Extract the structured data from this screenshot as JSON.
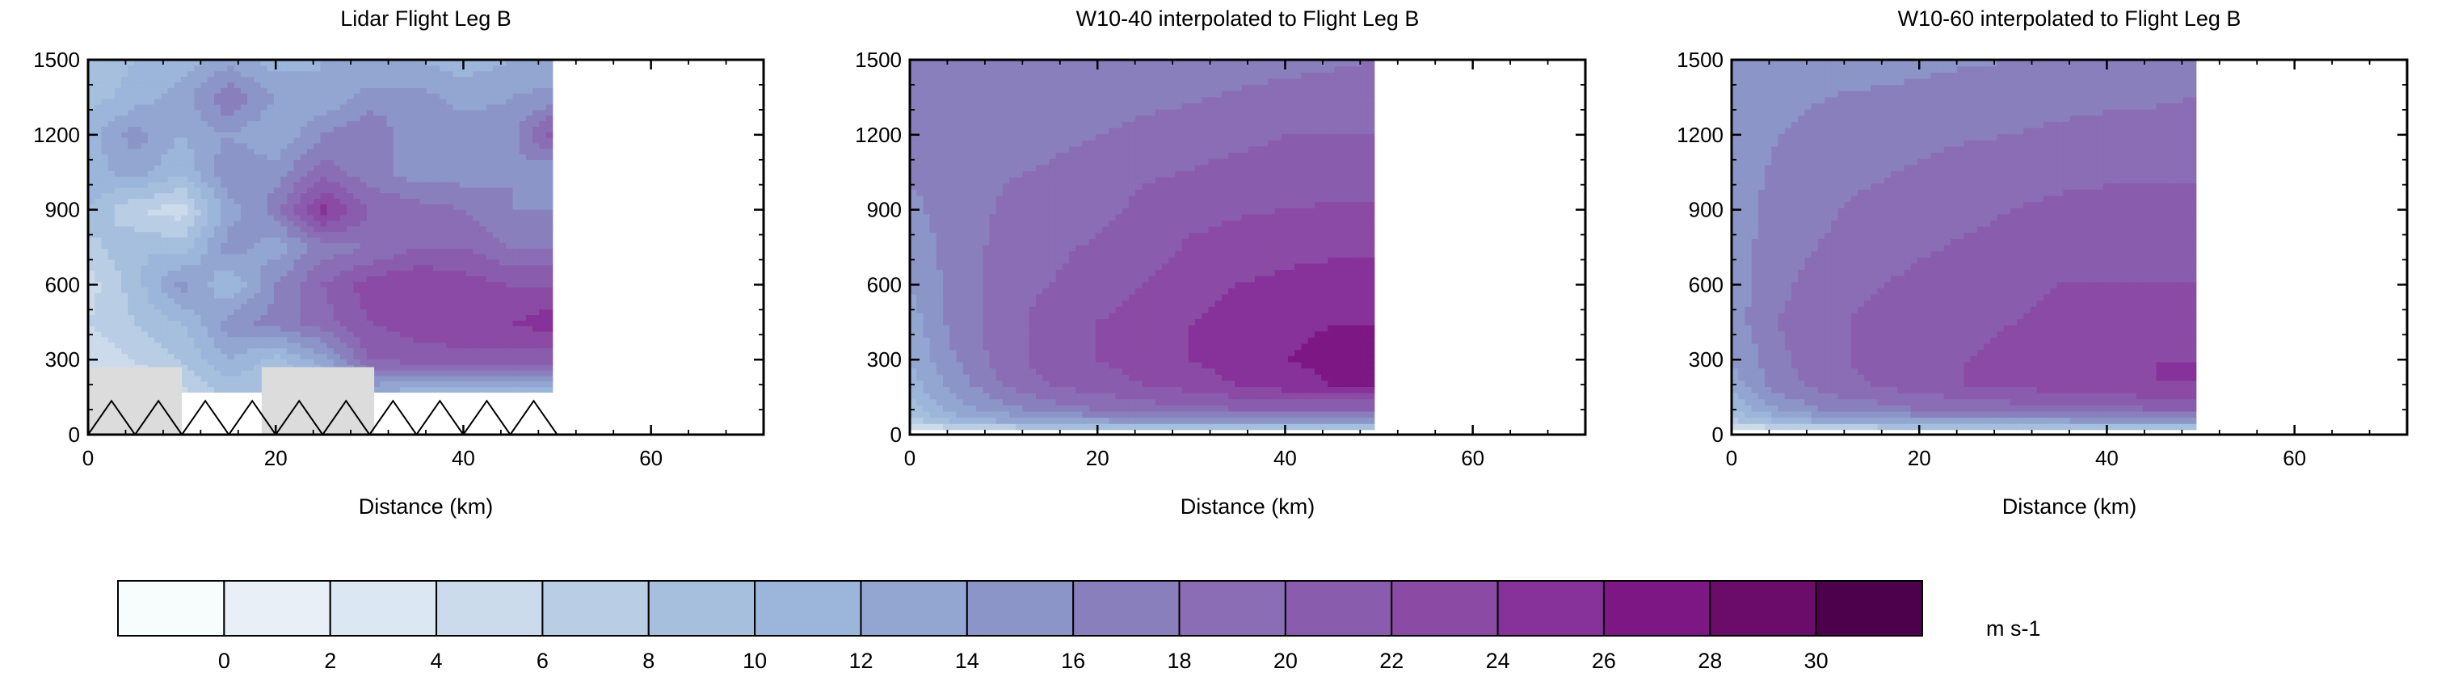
{
  "chart_data": [
    {
      "type": "heatmap",
      "title": "Lidar Flight Leg B",
      "xlabel": "Distance (km)",
      "ylabel": "",
      "xlim": [
        0,
        72
      ],
      "ylim": [
        0,
        1500
      ],
      "x_ticks": [
        0,
        20,
        40,
        60
      ],
      "y_ticks": [
        0,
        300,
        600,
        900,
        1200,
        1500
      ],
      "data_extent_x": [
        0,
        49.5
      ],
      "data_extent_y": [
        170,
        1500
      ],
      "x": [
        0,
        5,
        10,
        15,
        20,
        25,
        30,
        35,
        40,
        45,
        49.5
      ],
      "y": [
        150,
        300,
        450,
        600,
        750,
        900,
        1050,
        1200,
        1350,
        1500
      ],
      "z": [
        [
          4,
          4,
          5,
          8,
          8,
          9,
          11,
          9,
          8,
          8,
          9
        ],
        [
          4,
          6,
          8,
          12,
          9,
          13,
          20,
          21,
          21,
          21,
          21
        ],
        [
          6,
          8,
          10,
          15,
          17,
          19,
          22,
          23,
          24,
          24,
          25
        ],
        [
          5,
          9,
          15,
          10,
          16,
          20,
          23,
          24,
          23,
          22,
          22
        ],
        [
          7,
          10,
          9,
          15,
          13,
          17,
          18,
          20,
          20,
          18,
          18
        ],
        [
          10,
          6,
          5,
          13,
          17,
          25,
          20,
          19,
          18,
          16,
          16
        ],
        [
          11,
          13,
          10,
          16,
          15,
          19,
          17,
          15,
          15,
          16,
          14
        ],
        [
          11,
          15,
          12,
          14,
          12,
          16,
          18,
          14,
          16,
          15,
          21
        ],
        [
          9,
          11,
          13,
          18,
          14,
          12,
          15,
          15,
          13,
          14,
          15
        ],
        [
          8,
          10,
          11,
          13,
          11,
          12,
          12,
          12,
          11,
          12,
          12
        ]
      ],
      "terrain": {
        "boxes": [
          [
            0,
            10,
            0,
            270
          ],
          [
            18.5,
            30.5,
            0,
            270
          ]
        ],
        "triangles": {
          "x_start": 0,
          "x_end": 50,
          "count": 10,
          "height": 135
        }
      }
    },
    {
      "type": "heatmap",
      "title": "W10-40 interpolated to Flight Leg B",
      "xlabel": "Distance (km)",
      "ylabel": "",
      "xlim": [
        0,
        72
      ],
      "ylim": [
        0,
        1500
      ],
      "x_ticks": [
        0,
        20,
        40,
        60
      ],
      "y_ticks": [
        0,
        300,
        600,
        900,
        1200,
        1500
      ],
      "data_extent_x": [
        0,
        49.5
      ],
      "data_extent_y": [
        20,
        1500
      ],
      "x": [
        0,
        5,
        10,
        15,
        20,
        25,
        30,
        35,
        40,
        45,
        49.5
      ],
      "y": [
        20,
        50,
        100,
        200,
        300,
        450,
        600,
        800,
        1000,
        1200,
        1350,
        1500
      ],
      "z": [
        [
          3,
          4,
          5,
          5,
          6,
          6,
          6,
          6,
          6,
          6,
          6
        ],
        [
          7,
          10,
          12,
          13,
          13,
          14,
          14,
          14,
          14,
          14,
          14
        ],
        [
          9,
          13,
          15,
          17,
          18,
          19,
          19,
          20,
          20,
          20,
          20
        ],
        [
          11,
          15,
          18,
          20,
          21,
          22,
          23,
          24,
          25,
          26,
          26
        ],
        [
          12,
          16,
          19,
          21,
          22,
          23,
          24,
          25,
          26,
          26.5,
          27
        ],
        [
          13,
          17,
          19,
          21,
          22,
          23,
          24,
          25,
          25.5,
          26,
          26
        ],
        [
          14,
          17,
          19,
          20,
          21,
          22,
          23,
          24,
          24.5,
          25,
          25
        ],
        [
          15,
          17,
          18.5,
          19.5,
          20,
          21,
          22,
          22.5,
          23,
          23,
          23
        ],
        [
          16,
          17,
          18,
          18.5,
          19,
          20,
          20.5,
          21,
          21,
          21.5,
          21.5
        ],
        [
          16,
          16.8,
          17,
          17.5,
          18,
          18.5,
          19,
          19.5,
          20,
          20,
          20
        ],
        [
          16,
          16.5,
          16.8,
          17,
          17.2,
          17.5,
          17.8,
          18.2,
          18.5,
          18.8,
          19
        ],
        [
          16,
          16.3,
          16.5,
          16.6,
          16.8,
          17,
          17.1,
          17.3,
          17.5,
          17.7,
          18
        ]
      ]
    },
    {
      "type": "heatmap",
      "title": "W10-60 interpolated to Flight Leg B",
      "xlabel": "Distance (km)",
      "ylabel": "",
      "xlim": [
        0,
        72
      ],
      "ylim": [
        0,
        1500
      ],
      "x_ticks": [
        0,
        20,
        40,
        60
      ],
      "y_ticks": [
        0,
        300,
        600,
        900,
        1200,
        1500
      ],
      "data_extent_x": [
        0,
        49.5
      ],
      "data_extent_y": [
        20,
        1500
      ],
      "x": [
        0,
        5,
        10,
        15,
        20,
        25,
        30,
        35,
        40,
        45,
        49.5
      ],
      "y": [
        20,
        50,
        100,
        200,
        300,
        450,
        600,
        800,
        1000,
        1200,
        1350,
        1500
      ],
      "z": [
        [
          3,
          4,
          5,
          5,
          6,
          6,
          6,
          6,
          6,
          6,
          6
        ],
        [
          7,
          10,
          12,
          12,
          13,
          13,
          13,
          13,
          14,
          14,
          14
        ],
        [
          10,
          14,
          16,
          17,
          18,
          18,
          19,
          19,
          19,
          20,
          20
        ],
        [
          13,
          17,
          19,
          20,
          21,
          22,
          22.5,
          23,
          23.5,
          24,
          24
        ],
        [
          14,
          17.5,
          19.5,
          20.5,
          21,
          22,
          22.5,
          23,
          23.5,
          24,
          24
        ],
        [
          15,
          18,
          19.5,
          20.5,
          21,
          21.5,
          22,
          22.5,
          23,
          23,
          23
        ],
        [
          15,
          17.5,
          19,
          19.8,
          20.5,
          21,
          21.5,
          22,
          22,
          22,
          22
        ],
        [
          15,
          17,
          18,
          19,
          19.5,
          20,
          20.5,
          21,
          21,
          21,
          21
        ],
        [
          15,
          16.5,
          17.5,
          18,
          18.5,
          19,
          19.5,
          19.8,
          20,
          20,
          20
        ],
        [
          15,
          16,
          16.5,
          17,
          17.5,
          17.8,
          18,
          18.5,
          18.8,
          19,
          19
        ],
        [
          15,
          15.5,
          16,
          16.3,
          16.5,
          16.8,
          17,
          17.2,
          17.5,
          17.7,
          18
        ],
        [
          14,
          14.5,
          15,
          15.2,
          15.5,
          15.8,
          16,
          16.2,
          16.3,
          16.5,
          16.5
        ]
      ]
    }
  ],
  "colorbar": {
    "levels": [
      0,
      2,
      4,
      6,
      8,
      10,
      12,
      14,
      16,
      18,
      20,
      22,
      24,
      26,
      28,
      30
    ],
    "tick_labels": [
      "0",
      "2",
      "4",
      "6",
      "8",
      "10",
      "12",
      "14",
      "16",
      "18",
      "20",
      "22",
      "24",
      "26",
      "28",
      "30"
    ],
    "colors": [
      "#f7fcfd",
      "#e8eff7",
      "#dbe7f2",
      "#ccdbec",
      "#b9cde5",
      "#a5bfdd",
      "#9bb5db",
      "#93a6d2",
      "#8c95c7",
      "#8a7fbd",
      "#8a6db5",
      "#8a5cae",
      "#8b4ba5",
      "#86329a",
      "#7d1783",
      "#6b0c6a",
      "#4d004b"
    ],
    "units": "m s-1"
  }
}
